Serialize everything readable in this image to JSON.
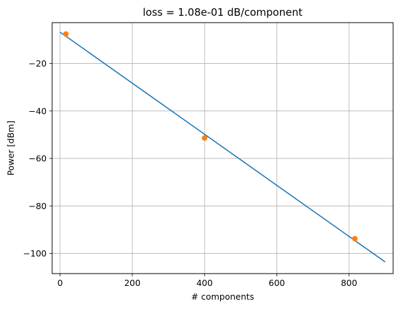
{
  "chart_data": {
    "type": "scatter",
    "title": "loss = 1.08e-01 dB/component",
    "xlabel": "# components",
    "ylabel": "Power [dBm]",
    "xlim": [
      -22,
      922
    ],
    "ylim": [
      -108.5,
      -2.8
    ],
    "xticks": [
      0,
      200,
      400,
      600,
      800
    ],
    "xtick_labels": [
      "0",
      "200",
      "400",
      "600",
      "800"
    ],
    "yticks": [
      -20,
      -40,
      -60,
      -80,
      -100
    ],
    "ytick_labels": [
      "−20",
      "−40",
      "−60",
      "−80",
      "−100"
    ],
    "grid": true,
    "series": [
      {
        "kind": "line",
        "color": "#1f77b4",
        "x": [
          0,
          900
        ],
        "y": [
          -6.8,
          -103.6
        ]
      },
      {
        "kind": "scatter",
        "color": "#ff7f0e",
        "x": [
          16,
          400,
          816
        ],
        "y": [
          -7.6,
          -51.4,
          -93.8
        ]
      }
    ]
  }
}
